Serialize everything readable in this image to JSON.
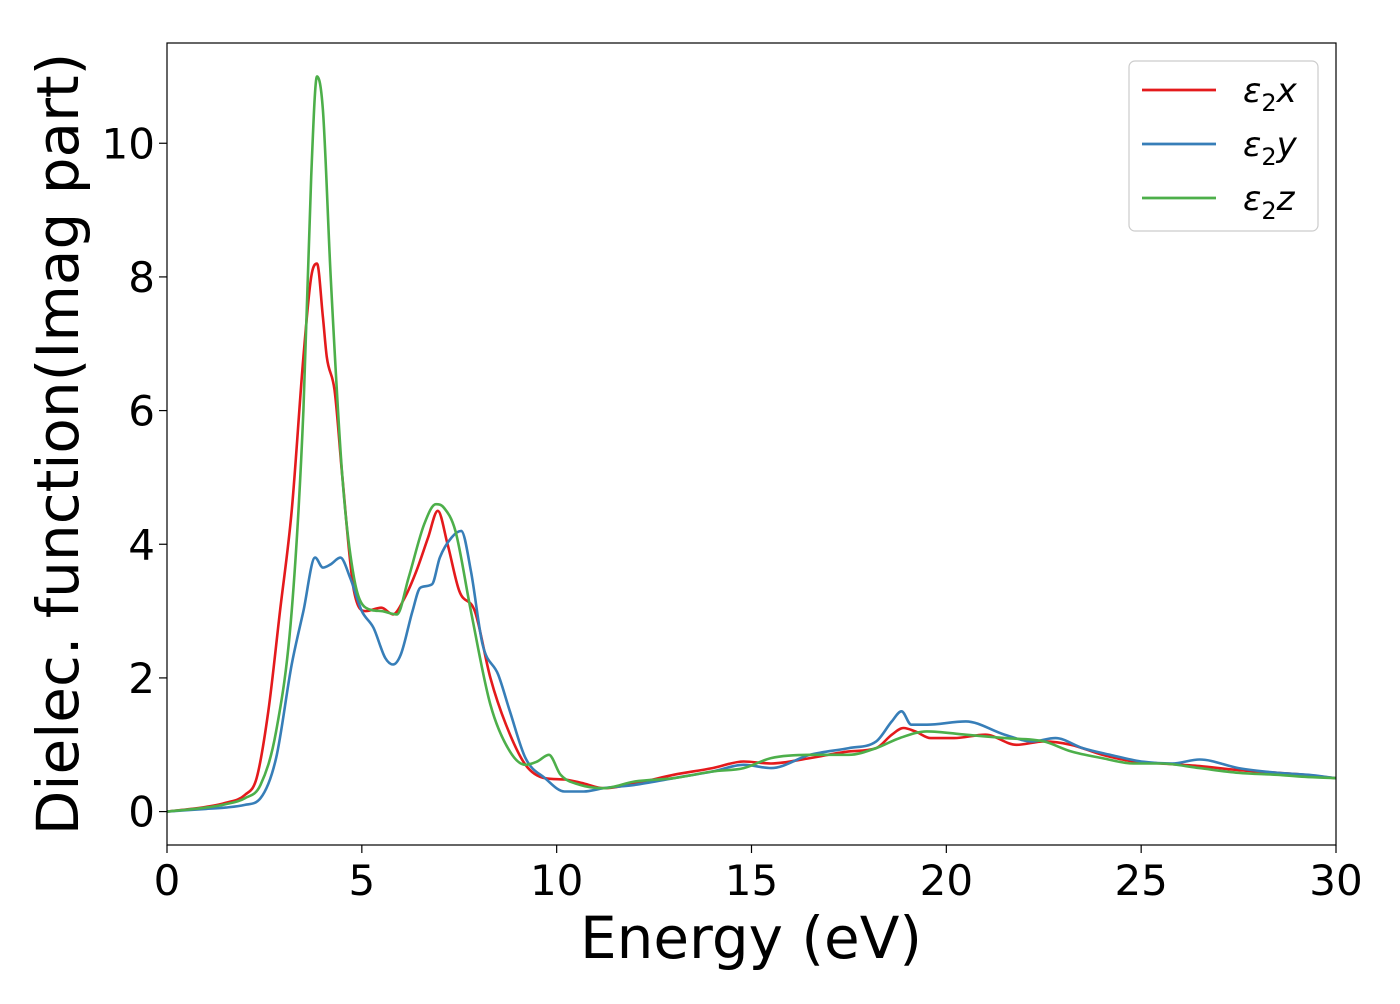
{
  "chart_data": {
    "type": "line",
    "title": "",
    "xlabel": "Energy (eV)",
    "ylabel": "Dielec. function(Imag part)",
    "xlim": [
      0,
      30
    ],
    "ylim": [
      -0.5,
      11.5
    ],
    "xticks": [
      0,
      5,
      10,
      15,
      20,
      25,
      30
    ],
    "yticks": [
      0,
      2,
      4,
      6,
      8,
      10
    ],
    "grid": false,
    "legend_position": "top-right",
    "series": [
      {
        "name": "ε2x",
        "legend": {
          "base": "ε",
          "sub": "2",
          "tail": "x"
        },
        "color": "#e41a1c",
        "x": [
          0,
          1,
          1.5,
          2,
          2.3,
          2.6,
          2.9,
          3.2,
          3.5,
          3.7,
          3.85,
          4.0,
          4.1,
          4.3,
          4.5,
          4.8,
          5.1,
          5.5,
          5.8,
          6.1,
          6.4,
          6.7,
          6.95,
          7.2,
          7.5,
          7.9,
          8.3,
          8.7,
          9.2,
          9.7,
          10.2,
          10.7,
          11.2,
          12,
          13,
          14,
          14.8,
          15.5,
          16.5,
          17.5,
          18.2,
          18.6,
          18.9,
          19.2,
          19.6,
          20.2,
          21,
          21.8,
          22.5,
          23.2,
          24,
          24.8,
          25.5,
          26.5,
          27.5,
          28.5,
          29.2,
          30
        ],
        "y": [
          0,
          0.07,
          0.13,
          0.25,
          0.5,
          1.5,
          3.0,
          4.5,
          6.8,
          8.0,
          8.2,
          7.4,
          6.8,
          6.3,
          5.0,
          3.3,
          3.0,
          3.05,
          2.95,
          3.2,
          3.6,
          4.1,
          4.5,
          4.0,
          3.3,
          3.0,
          2.0,
          1.3,
          0.7,
          0.5,
          0.48,
          0.42,
          0.35,
          0.42,
          0.55,
          0.65,
          0.75,
          0.72,
          0.8,
          0.9,
          0.95,
          1.15,
          1.25,
          1.2,
          1.1,
          1.1,
          1.15,
          1.0,
          1.05,
          1.0,
          0.85,
          0.75,
          0.72,
          0.68,
          0.62,
          0.58,
          0.55,
          0.5
        ]
      },
      {
        "name": "ε2y",
        "legend": {
          "base": "ε",
          "sub": "2",
          "tail": "y"
        },
        "color": "#377eb8",
        "x": [
          0,
          1,
          1.5,
          2,
          2.4,
          2.8,
          3.2,
          3.5,
          3.8,
          4.0,
          4.2,
          4.45,
          4.7,
          5.0,
          5.3,
          5.6,
          5.8,
          6.0,
          6.3,
          6.5,
          6.8,
          7.0,
          7.3,
          7.55,
          7.8,
          8.1,
          8.5,
          8.8,
          9.2,
          9.7,
          10.2,
          10.7,
          11.2,
          12,
          13,
          14,
          14.8,
          15.5,
          16.5,
          17.5,
          18.2,
          18.6,
          18.85,
          19.1,
          19.5,
          20.5,
          21.5,
          22.2,
          22.8,
          23.5,
          24.2,
          25,
          25.8,
          26.5,
          27.5,
          28.5,
          29.3,
          30
        ],
        "y": [
          0,
          0.04,
          0.06,
          0.1,
          0.2,
          0.8,
          2.2,
          3.0,
          3.8,
          3.65,
          3.7,
          3.8,
          3.5,
          3.0,
          2.75,
          2.3,
          2.2,
          2.35,
          3.0,
          3.35,
          3.4,
          3.8,
          4.1,
          4.2,
          3.6,
          2.5,
          2.05,
          1.5,
          0.8,
          0.5,
          0.3,
          0.3,
          0.35,
          0.4,
          0.5,
          0.6,
          0.7,
          0.65,
          0.85,
          0.95,
          1.05,
          1.35,
          1.5,
          1.3,
          1.3,
          1.35,
          1.15,
          1.05,
          1.1,
          0.95,
          0.85,
          0.75,
          0.72,
          0.78,
          0.65,
          0.58,
          0.55,
          0.5
        ]
      },
      {
        "name": "ε2z",
        "legend": {
          "base": "ε",
          "sub": "2",
          "tail": "z"
        },
        "color": "#4daf4a",
        "x": [
          0,
          1,
          1.5,
          2,
          2.4,
          2.8,
          3.2,
          3.5,
          3.7,
          3.85,
          4.0,
          4.2,
          4.5,
          4.8,
          5.1,
          5.5,
          5.9,
          6.2,
          6.6,
          6.9,
          7.1,
          7.4,
          7.8,
          8.3,
          8.8,
          9.2,
          9.5,
          9.8,
          10.1,
          10.6,
          11.2,
          12,
          13,
          14,
          14.8,
          15.5,
          16.5,
          17.5,
          18.2,
          18.8,
          19.5,
          20.5,
          21.5,
          22.5,
          23.2,
          24,
          24.8,
          25.5,
          26.5,
          27.5,
          28.5,
          29.2,
          30
        ],
        "y": [
          0,
          0.06,
          0.11,
          0.2,
          0.4,
          1.2,
          3.0,
          6.0,
          9.5,
          11.0,
          10.5,
          8.0,
          5.0,
          3.5,
          3.05,
          3.0,
          2.95,
          3.5,
          4.3,
          4.6,
          4.55,
          4.2,
          3.0,
          1.6,
          0.9,
          0.7,
          0.75,
          0.85,
          0.55,
          0.4,
          0.35,
          0.45,
          0.5,
          0.6,
          0.65,
          0.8,
          0.85,
          0.85,
          0.95,
          1.1,
          1.2,
          1.15,
          1.1,
          1.05,
          0.9,
          0.8,
          0.72,
          0.72,
          0.65,
          0.58,
          0.55,
          0.52,
          0.5
        ]
      }
    ]
  }
}
